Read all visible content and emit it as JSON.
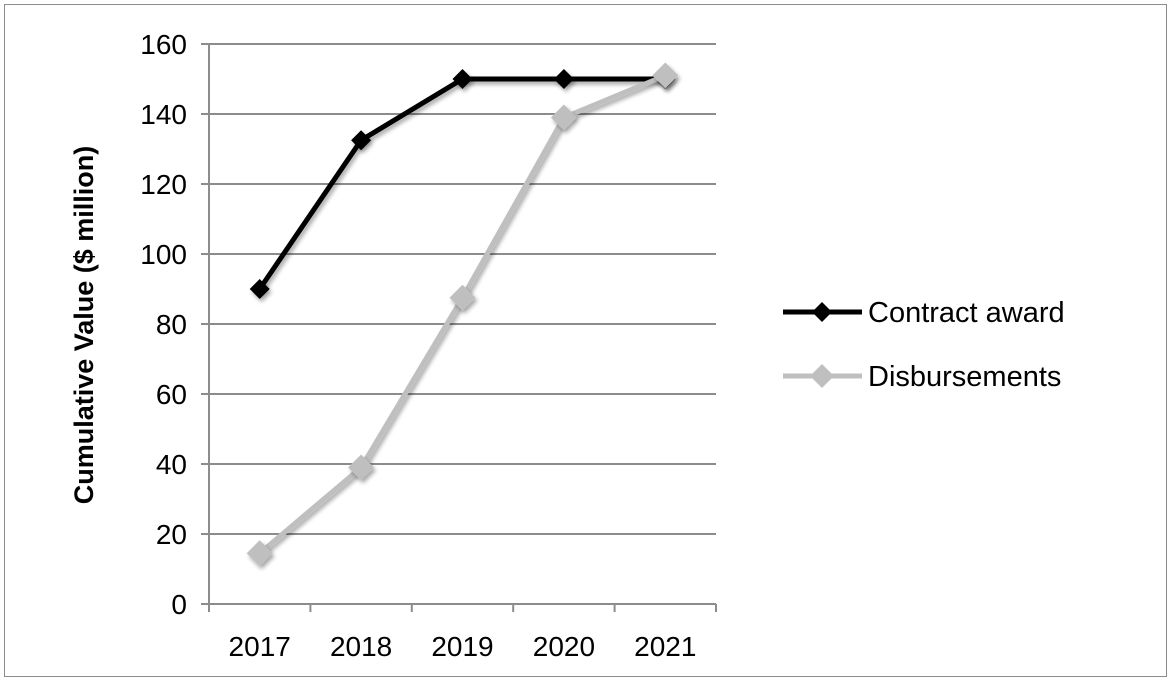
{
  "chart_data": {
    "type": "line",
    "categories": [
      "2017",
      "2018",
      "2019",
      "2020",
      "2021"
    ],
    "ylabel": "Cumulative Value ($ million)",
    "ylim": [
      0,
      160
    ],
    "yticks": [
      0,
      20,
      40,
      60,
      80,
      100,
      120,
      140,
      160
    ],
    "grid": true,
    "legend_position": "right",
    "series": [
      {
        "name": "Contract award",
        "color": "#000000",
        "marker": "diamond",
        "values": [
          90,
          132.5,
          150,
          150,
          150
        ]
      },
      {
        "name": "Disbursements",
        "color": "#bfbfbf",
        "marker": "diamond",
        "values": [
          14.5,
          39,
          87.5,
          139,
          151
        ]
      }
    ]
  }
}
